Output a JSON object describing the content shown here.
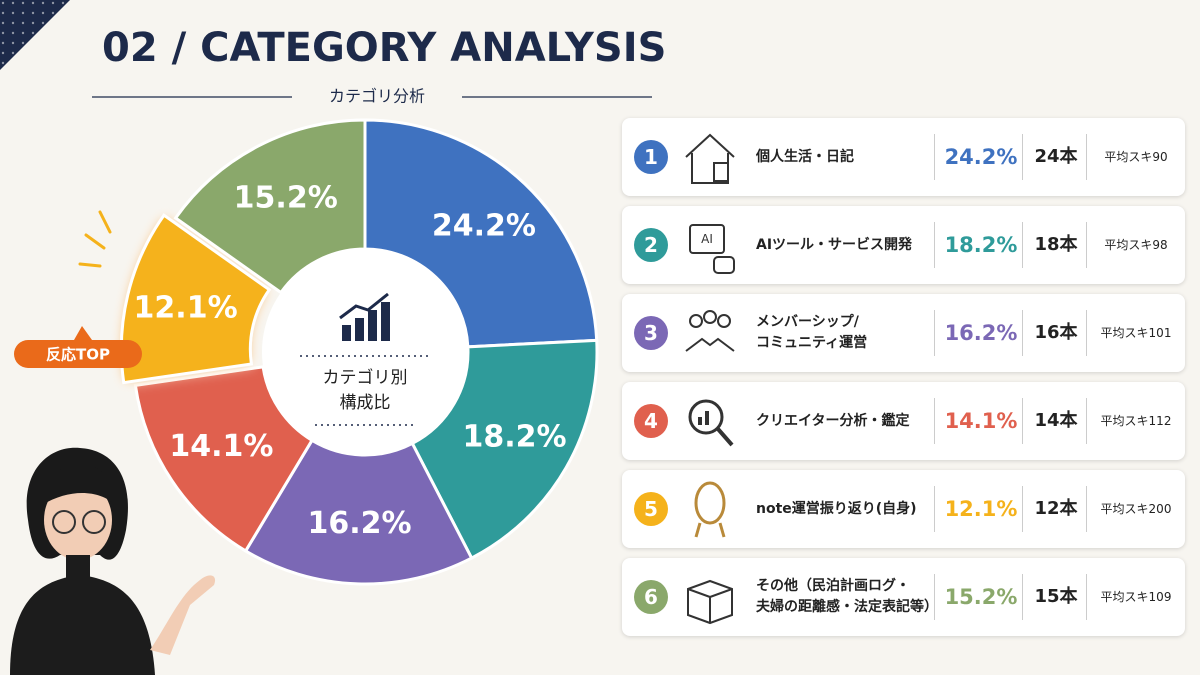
{
  "chart_data": {
    "type": "pie",
    "title": "02 / CATEGORY ANALYSIS",
    "subtitle": "カテゴリ分析",
    "center_label": [
      "カテゴリ別",
      "構成比"
    ],
    "callout": "反応TOP",
    "categories": [
      "個人生活・日記",
      "AIツール・サービス開発",
      "メンバーシップ/\nコミュニティ運営",
      "クリエイター分析・鑑定",
      "note運営振り返り(自身)",
      "その他（民泊計画ログ・\n夫婦の距離感・法定表記等）"
    ],
    "values": [
      24.2,
      18.2,
      16.2,
      14.1,
      12.1,
      15.2
    ],
    "value_labels": [
      "24.2%",
      "18.2%",
      "16.2%",
      "14.1%",
      "12.1%",
      "15.2%"
    ],
    "colors": [
      "#3f72c0",
      "#2f9b9a",
      "#7b68b5",
      "#e0604e",
      "#f5b21b",
      "#8aa86b"
    ],
    "highlight": 4
  },
  "list": {
    "ranks": [
      1,
      2,
      3,
      4,
      5,
      6
    ],
    "counts": [
      "24本",
      "18本",
      "16本",
      "14本",
      "12本",
      "15本"
    ],
    "avg_likes": [
      "平均スキ90",
      "平均スキ98",
      "平均スキ101",
      "平均スキ112",
      "平均スキ200",
      "平均スキ109"
    ]
  }
}
